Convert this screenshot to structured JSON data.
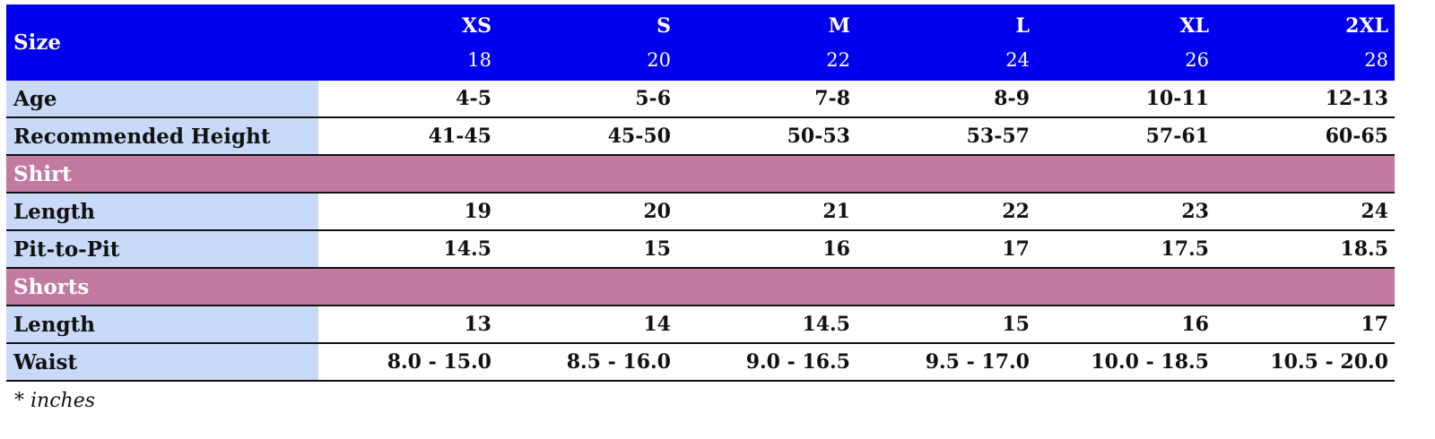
{
  "header": {
    "label": "Size",
    "sizes": [
      {
        "name": "XS",
        "number": "18"
      },
      {
        "name": "S",
        "number": "20"
      },
      {
        "name": "M",
        "number": "22"
      },
      {
        "name": "L",
        "number": "24"
      },
      {
        "name": "XL",
        "number": "26"
      },
      {
        "name": "2XL",
        "number": "28"
      }
    ]
  },
  "general_rows": [
    {
      "label": "Age",
      "cells": [
        "4-5",
        "5-6",
        "7-8",
        "8-9",
        "10-11",
        "12-13"
      ]
    },
    {
      "label": "Recommended Height",
      "cells": [
        "41-45",
        "45-50",
        "50-53",
        "53-57",
        "57-61",
        "60-65"
      ]
    }
  ],
  "sections": [
    {
      "title": "Shirt",
      "rows": [
        {
          "label": "Length",
          "cells": [
            "19",
            "20",
            "21",
            "22",
            "23",
            "24"
          ]
        },
        {
          "label": "Pit-to-Pit",
          "cells": [
            "14.5",
            "15",
            "16",
            "17",
            "17.5",
            "18.5"
          ]
        }
      ]
    },
    {
      "title": "Shorts",
      "rows": [
        {
          "label": "Length",
          "cells": [
            "13",
            "14",
            "14.5",
            "15",
            "16",
            "17"
          ]
        },
        {
          "label": "Waist",
          "cells": [
            "8.0 - 15.0",
            "8.5 - 16.0",
            "9.0 - 16.5",
            "9.5 - 17.0",
            "10.0 - 18.5",
            "10.5 - 20.0"
          ]
        }
      ]
    }
  ],
  "footnote": "* inches"
}
